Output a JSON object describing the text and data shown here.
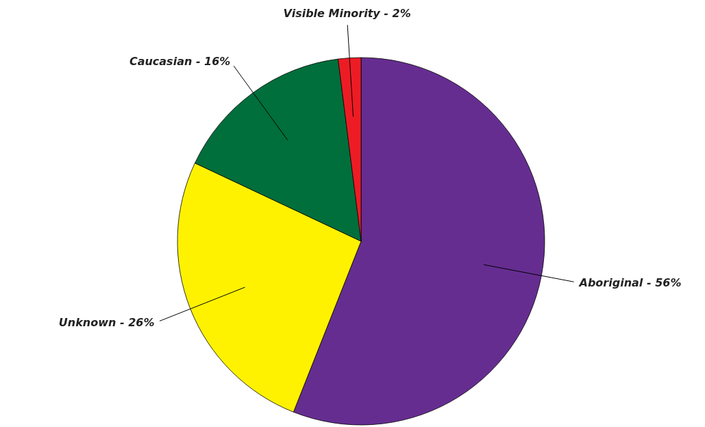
{
  "chart_data": {
    "type": "pie",
    "categories": [
      "Aboriginal - 56%",
      "Unknown - 26%",
      "Caucasian - 16%",
      "Visible Minority - 2%"
    ],
    "values": [
      56,
      26,
      16,
      2
    ],
    "colors": [
      "#662d91",
      "#fff200",
      "#006f3c",
      "#ed1c24"
    ]
  }
}
